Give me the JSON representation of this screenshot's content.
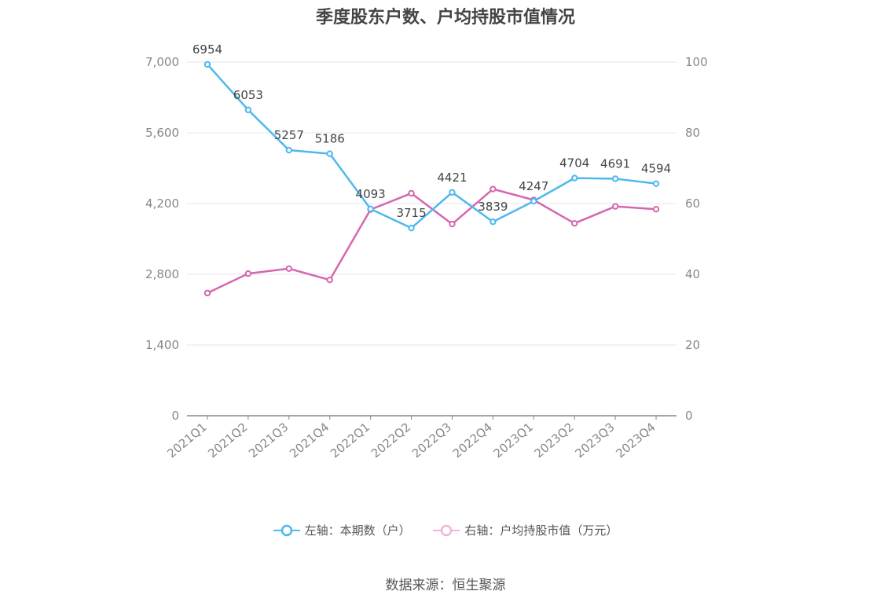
{
  "chart_data": {
    "type": "line",
    "title": "季度股东户数、户均持股市值情况",
    "categories": [
      "2021Q1",
      "2021Q2",
      "2021Q3",
      "2021Q4",
      "2022Q1",
      "2022Q2",
      "2022Q3",
      "2022Q4",
      "2023Q1",
      "2023Q2",
      "2023Q3",
      "2023Q4"
    ],
    "series": [
      {
        "name": "左轴：本期数（户）",
        "axis": "left",
        "color": "#4db8ee",
        "values": [
          6954,
          6053,
          5257,
          5186,
          4093,
          3715,
          4421,
          3839,
          4247,
          4704,
          4691,
          4594
        ],
        "labels": [
          "6954",
          "6053",
          "5257",
          "5186",
          "4093",
          "3715",
          "4421",
          "3839",
          "4247",
          "4704",
          "4691",
          "4594"
        ]
      },
      {
        "name": "右轴：户均持股市值（万元）",
        "axis": "right",
        "color": "#d467b0",
        "values": [
          34.7,
          40.2,
          41.6,
          38.4,
          58.3,
          62.9,
          54.2,
          64.1,
          61.0,
          54.4,
          59.2,
          58.4
        ]
      }
    ],
    "left_axis": {
      "ylim": [
        0,
        7000
      ],
      "ticks": [
        "0",
        "1,400",
        "2,800",
        "4,200",
        "5,600",
        "7,000"
      ]
    },
    "right_axis": {
      "ylim": [
        0,
        100
      ],
      "ticks": [
        "0",
        "20",
        "40",
        "60",
        "80",
        "100"
      ]
    },
    "grid": true,
    "legend_position": "bottom",
    "source": "数据来源：恒生聚源"
  }
}
